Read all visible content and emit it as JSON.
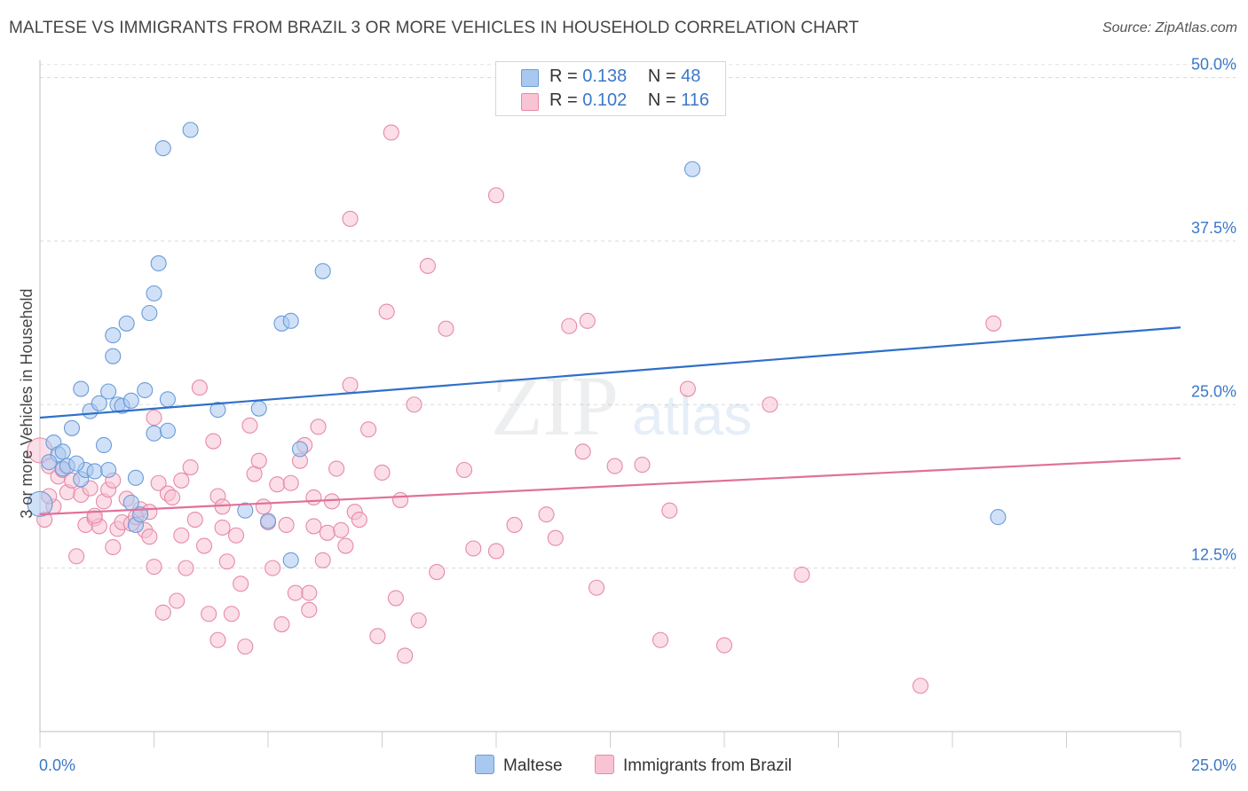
{
  "header": {
    "title": "MALTESE VS IMMIGRANTS FROM BRAZIL 3 OR MORE VEHICLES IN HOUSEHOLD CORRELATION CHART",
    "source": "Source: ZipAtlas.com"
  },
  "watermark": {
    "text_zip": "ZIP",
    "text_atlas": "atlas"
  },
  "stats_legend": [
    {
      "r_label": "R =",
      "r_value": "0.138",
      "n_label": "N =",
      "n_value": "48",
      "color": "#a9c8f0",
      "border": "#6b9bd8"
    },
    {
      "r_label": "R =",
      "r_value": "0.102",
      "n_label": "N =",
      "n_value": "116",
      "color": "#f8c3d3",
      "border": "#e68aa8"
    }
  ],
  "bottom_legend": [
    {
      "label": "Maltese",
      "color": "#a9c8f0",
      "border": "#6b9bd8"
    },
    {
      "label": "Immigrants from Brazil",
      "color": "#f8c3d3",
      "border": "#e68aa8"
    }
  ],
  "chart_data": {
    "type": "scatter",
    "title": "MALTESE VS IMMIGRANTS FROM BRAZIL 3 OR MORE VEHICLES IN HOUSEHOLD CORRELATION CHART",
    "xlabel": "",
    "ylabel": "3 or more Vehicles in Household",
    "xlim": [
      0,
      25
    ],
    "ylim": [
      0,
      52
    ],
    "x_tick_labels": [
      "0.0%",
      "25.0%"
    ],
    "y_ticks": [
      12.5,
      25.0,
      37.5,
      50.0
    ],
    "y_tick_labels": [
      "12.5%",
      "25.0%",
      "37.5%",
      "50.0%"
    ],
    "grid": true,
    "legend_position": "top-center",
    "series": [
      {
        "name": "Maltese",
        "color": "#6b9bd8",
        "fill": "#a9c8f0",
        "trend_color": "#2f6fc9",
        "trend": {
          "x": [
            0,
            25
          ],
          "y": [
            24.0,
            30.9
          ]
        },
        "points": [
          [
            0.0,
            17.4
          ],
          [
            0.3,
            22.1
          ],
          [
            0.4,
            21.2
          ],
          [
            0.5,
            21.4
          ],
          [
            0.5,
            20.1
          ],
          [
            0.7,
            23.2
          ],
          [
            0.6,
            20.3
          ],
          [
            0.9,
            26.2
          ],
          [
            0.9,
            19.3
          ],
          [
            1.0,
            20.0
          ],
          [
            1.1,
            24.5
          ],
          [
            1.2,
            19.9
          ],
          [
            1.3,
            25.1
          ],
          [
            1.4,
            21.9
          ],
          [
            1.5,
            26.0
          ],
          [
            1.6,
            28.7
          ],
          [
            1.6,
            30.3
          ],
          [
            1.7,
            25.0
          ],
          [
            1.8,
            24.9
          ],
          [
            1.9,
            31.2
          ],
          [
            2.0,
            25.3
          ],
          [
            2.1,
            19.4
          ],
          [
            2.0,
            17.5
          ],
          [
            2.3,
            26.1
          ],
          [
            2.4,
            32.0
          ],
          [
            2.5,
            33.5
          ],
          [
            2.5,
            22.8
          ],
          [
            2.6,
            35.8
          ],
          [
            2.7,
            44.6
          ],
          [
            2.8,
            23.0
          ],
          [
            2.8,
            25.4
          ],
          [
            3.3,
            46.0
          ],
          [
            3.9,
            24.6
          ],
          [
            4.5,
            16.9
          ],
          [
            4.8,
            24.7
          ],
          [
            5.0,
            16.1
          ],
          [
            5.3,
            31.2
          ],
          [
            5.5,
            31.4
          ],
          [
            5.5,
            13.1
          ],
          [
            5.7,
            21.6
          ],
          [
            6.2,
            35.2
          ],
          [
            14.3,
            43.0
          ],
          [
            21.0,
            16.4
          ],
          [
            2.1,
            15.8
          ],
          [
            0.8,
            20.5
          ],
          [
            1.5,
            20.0
          ],
          [
            2.2,
            16.6
          ],
          [
            0.2,
            20.6
          ]
        ]
      },
      {
        "name": "Immigrants from Brazil",
        "color": "#e68aa8",
        "fill": "#f8c3d3",
        "trend_color": "#e0709a",
        "trend": {
          "x": [
            0,
            25
          ],
          "y": [
            16.6,
            20.9
          ]
        },
        "points": [
          [
            0.0,
            21.5
          ],
          [
            0.1,
            16.2
          ],
          [
            0.2,
            20.3
          ],
          [
            0.3,
            17.2
          ],
          [
            0.4,
            19.5
          ],
          [
            0.5,
            20.0
          ],
          [
            0.6,
            18.3
          ],
          [
            0.7,
            19.2
          ],
          [
            0.8,
            13.4
          ],
          [
            0.9,
            18.1
          ],
          [
            1.0,
            15.8
          ],
          [
            1.1,
            18.6
          ],
          [
            1.2,
            16.3
          ],
          [
            1.3,
            15.7
          ],
          [
            1.4,
            17.6
          ],
          [
            1.5,
            18.5
          ],
          [
            1.6,
            14.1
          ],
          [
            1.6,
            19.2
          ],
          [
            1.7,
            15.5
          ],
          [
            1.8,
            16.0
          ],
          [
            1.9,
            17.8
          ],
          [
            2.0,
            15.9
          ],
          [
            2.1,
            16.4
          ],
          [
            2.2,
            17.0
          ],
          [
            2.3,
            15.4
          ],
          [
            2.4,
            14.9
          ],
          [
            2.5,
            24.0
          ],
          [
            2.5,
            12.6
          ],
          [
            2.6,
            19.0
          ],
          [
            2.7,
            9.1
          ],
          [
            2.8,
            18.2
          ],
          [
            2.9,
            17.9
          ],
          [
            3.0,
            10.0
          ],
          [
            3.1,
            15.0
          ],
          [
            3.1,
            19.2
          ],
          [
            3.2,
            12.5
          ],
          [
            3.3,
            20.2
          ],
          [
            3.4,
            16.2
          ],
          [
            3.5,
            26.3
          ],
          [
            3.6,
            14.2
          ],
          [
            3.7,
            9.0
          ],
          [
            3.8,
            22.2
          ],
          [
            3.9,
            7.0
          ],
          [
            3.9,
            18.0
          ],
          [
            4.0,
            15.6
          ],
          [
            4.1,
            13.0
          ],
          [
            4.2,
            9.0
          ],
          [
            4.3,
            15.0
          ],
          [
            4.4,
            11.3
          ],
          [
            4.5,
            6.5
          ],
          [
            4.6,
            23.4
          ],
          [
            4.7,
            19.7
          ],
          [
            4.8,
            20.7
          ],
          [
            4.9,
            17.2
          ],
          [
            5.0,
            16.0
          ],
          [
            5.1,
            12.5
          ],
          [
            5.2,
            18.9
          ],
          [
            5.3,
            8.2
          ],
          [
            5.4,
            15.8
          ],
          [
            5.5,
            19.0
          ],
          [
            5.6,
            10.6
          ],
          [
            5.7,
            20.7
          ],
          [
            5.8,
            21.9
          ],
          [
            5.9,
            9.3
          ],
          [
            5.9,
            10.6
          ],
          [
            6.0,
            15.7
          ],
          [
            6.1,
            23.3
          ],
          [
            6.2,
            13.1
          ],
          [
            6.3,
            15.2
          ],
          [
            6.4,
            17.6
          ],
          [
            6.5,
            20.1
          ],
          [
            6.6,
            15.4
          ],
          [
            6.7,
            14.2
          ],
          [
            6.8,
            26.5
          ],
          [
            6.8,
            39.2
          ],
          [
            6.9,
            16.8
          ],
          [
            7.0,
            16.2
          ],
          [
            7.2,
            23.1
          ],
          [
            7.4,
            7.3
          ],
          [
            7.6,
            32.1
          ],
          [
            7.7,
            45.8
          ],
          [
            7.8,
            10.2
          ],
          [
            7.9,
            17.7
          ],
          [
            8.0,
            5.8
          ],
          [
            8.2,
            25.0
          ],
          [
            8.3,
            8.5
          ],
          [
            8.5,
            35.6
          ],
          [
            8.7,
            12.2
          ],
          [
            8.9,
            30.8
          ],
          [
            9.3,
            20.0
          ],
          [
            9.5,
            14.0
          ],
          [
            10.0,
            13.8
          ],
          [
            10.0,
            41.0
          ],
          [
            10.4,
            15.8
          ],
          [
            11.1,
            16.6
          ],
          [
            11.3,
            14.8
          ],
          [
            11.6,
            31.0
          ],
          [
            11.9,
            21.4
          ],
          [
            12.0,
            31.4
          ],
          [
            12.2,
            11.0
          ],
          [
            12.6,
            20.3
          ],
          [
            13.2,
            20.4
          ],
          [
            13.6,
            7.0
          ],
          [
            13.8,
            16.9
          ],
          [
            14.2,
            26.2
          ],
          [
            15.0,
            6.6
          ],
          [
            16.0,
            25.0
          ],
          [
            16.7,
            12.0
          ],
          [
            19.3,
            3.5
          ],
          [
            20.9,
            31.2
          ],
          [
            0.2,
            18.0
          ],
          [
            1.2,
            16.5
          ],
          [
            2.4,
            16.8
          ],
          [
            4.0,
            17.2
          ],
          [
            6.0,
            17.9
          ],
          [
            7.5,
            19.8
          ]
        ]
      }
    ]
  }
}
